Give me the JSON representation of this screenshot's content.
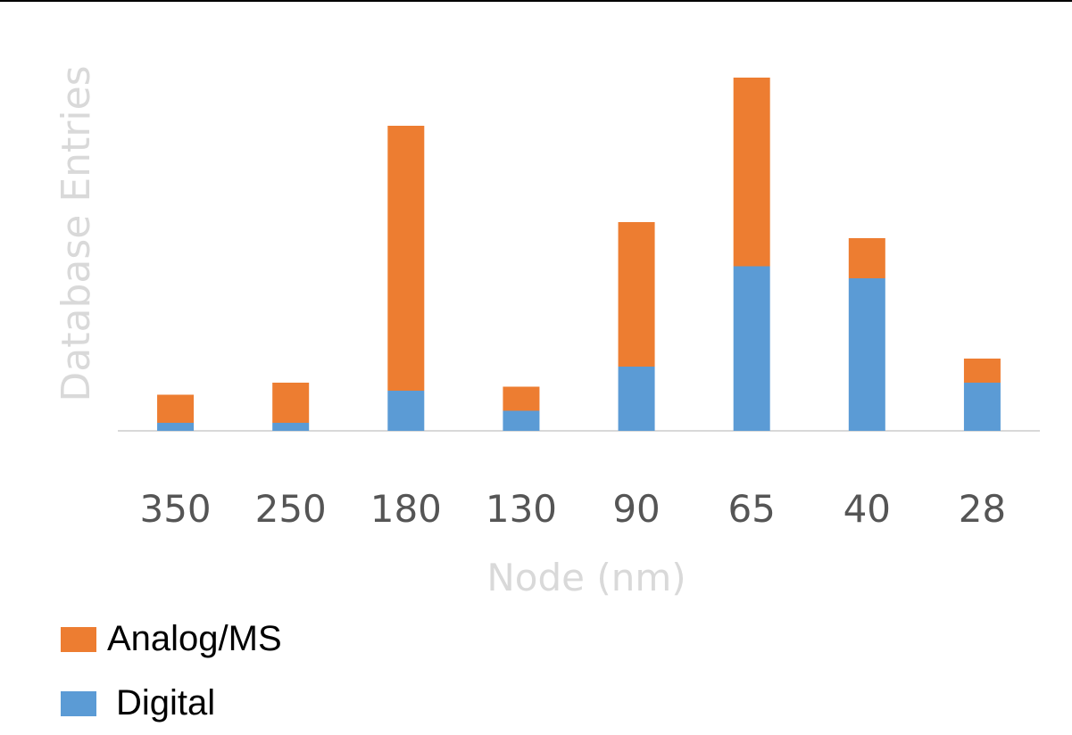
{
  "chart_data": {
    "type": "bar",
    "stacked": true,
    "categories": [
      "350",
      "250",
      "180",
      "130",
      "90",
      "65",
      "40",
      "28"
    ],
    "series": [
      {
        "name": "Digital",
        "color": "#5b9bd5",
        "values": [
          2,
          2,
          10,
          5,
          16,
          41,
          38,
          12
        ]
      },
      {
        "name": "Analog/MS",
        "color": "#ed7d31",
        "values": [
          7,
          10,
          66,
          6,
          36,
          47,
          10,
          6
        ]
      }
    ],
    "xlabel": "Node (nm)",
    "ylabel": "Database Entries",
    "ylim": [
      0,
      92
    ],
    "grid": false,
    "legend": "bottom-left",
    "legend_entries": [
      {
        "label": "Analog/MS",
        "color": "#ed7d31"
      },
      {
        "label": "Digital",
        "color": "#5b9bd5"
      }
    ]
  }
}
